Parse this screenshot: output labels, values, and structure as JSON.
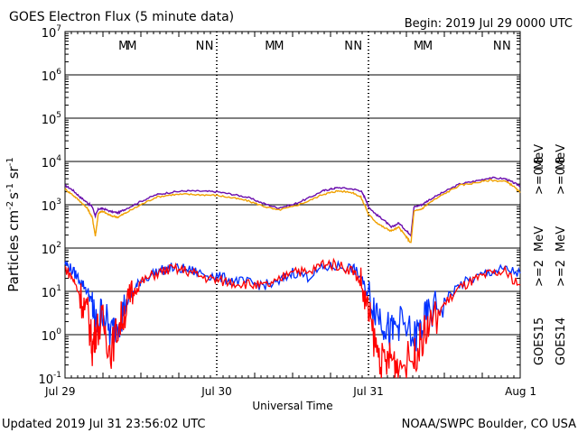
{
  "header": {
    "title": "GOES Electron Flux (5 minute data)",
    "begin": "Begin: 2019 Jul 29 0000 UTC"
  },
  "footer": {
    "updated": "Updated 2019 Jul 31 23:56:02 UTC",
    "source": "NOAA/SWPC Boulder, CO USA"
  },
  "colors": {
    "goes15_high": "#6a0dad",
    "goes14_high": "#f0a000",
    "goes15_low": "#0030ff",
    "goes14_low": "#ff0000",
    "mark_m_color": "#cc0000",
    "mark_n_color": "#0030ff",
    "threshold": "#000000"
  },
  "chart_data": {
    "type": "line",
    "title": "GOES Electron Flux (5 minute data)",
    "xlabel": "Universal Time",
    "ylabel": "Particles cm-2 s-1 sr-1",
    "ylabel_parts": {
      "base": "Particles cm",
      "e1": "-2",
      "s": "s",
      "e2": "-1",
      "sr": " sr",
      "e3": "-1"
    },
    "xlim_days": [
      0,
      3
    ],
    "x_tick_labels": [
      "Jul 29",
      "Jul 30",
      "Jul 31",
      "Aug 1"
    ],
    "y_scale": "log",
    "ylim": [
      0.1,
      10000000
    ],
    "y_tick_labels": [
      {
        "base": "10",
        "exp": "-1",
        "value": 0.1
      },
      {
        "base": "10",
        "exp": "0",
        "value": 1
      },
      {
        "base": "10",
        "exp": "1",
        "value": 10
      },
      {
        "base": "10",
        "exp": "2",
        "value": 100
      },
      {
        "base": "10",
        "exp": "3",
        "value": 1000
      },
      {
        "base": "10",
        "exp": "4",
        "value": 10000
      },
      {
        "base": "10",
        "exp": "5",
        "value": 100000
      },
      {
        "base": "10",
        "exp": "6",
        "value": 1000000
      },
      {
        "base": "10",
        "exp": "7",
        "value": 10000000
      }
    ],
    "threshold": 1000,
    "grid": true,
    "marks": [
      {
        "label": "M",
        "day": 0.385,
        "color": "m"
      },
      {
        "label": "M",
        "day": 0.44,
        "color": "n"
      },
      {
        "label": "N",
        "day": 0.89,
        "color": "m"
      },
      {
        "label": "N",
        "day": 0.95,
        "color": "n"
      },
      {
        "label": "M",
        "day": 1.35,
        "color": "m"
      },
      {
        "label": "M",
        "day": 1.41,
        "color": "n"
      },
      {
        "label": "N",
        "day": 1.87,
        "color": "m"
      },
      {
        "label": "N",
        "day": 1.93,
        "color": "n"
      },
      {
        "label": "M",
        "day": 2.33,
        "color": "m"
      },
      {
        "label": "M",
        "day": 2.39,
        "color": "n"
      },
      {
        "label": "N",
        "day": 2.85,
        "color": "m"
      },
      {
        "label": "N",
        "day": 2.91,
        "color": "n"
      }
    ],
    "legend": {
      "groups": [
        {
          "series": "GOES15",
          "low": ">=2",
          "high": ">=0.8"
        },
        {
          "series": "GOES14",
          "low": ">=2",
          "high": ">=0.8"
        }
      ],
      "unit": "MeV"
    },
    "series": [
      {
        "name": "GOES15 >=0.8 MeV",
        "color_key": "goes15_high",
        "points": [
          [
            0,
            2800
          ],
          [
            0.05,
            2200
          ],
          [
            0.1,
            1500
          ],
          [
            0.15,
            1100
          ],
          [
            0.18,
            900
          ],
          [
            0.2,
            550
          ],
          [
            0.22,
            800
          ],
          [
            0.25,
            820
          ],
          [
            0.3,
            700
          ],
          [
            0.35,
            650
          ],
          [
            0.4,
            800
          ],
          [
            0.5,
            1200
          ],
          [
            0.6,
            1700
          ],
          [
            0.7,
            1950
          ],
          [
            0.8,
            2100
          ],
          [
            0.9,
            2050
          ],
          [
            1.0,
            2000
          ],
          [
            1.1,
            1750
          ],
          [
            1.2,
            1500
          ],
          [
            1.3,
            1100
          ],
          [
            1.4,
            850
          ],
          [
            1.5,
            1000
          ],
          [
            1.6,
            1400
          ],
          [
            1.7,
            2100
          ],
          [
            1.75,
            2300
          ],
          [
            1.8,
            2500
          ],
          [
            1.9,
            2300
          ],
          [
            1.95,
            2100
          ],
          [
            1.98,
            1400
          ],
          [
            2.0,
            900
          ],
          [
            2.05,
            600
          ],
          [
            2.1,
            450
          ],
          [
            2.15,
            300
          ],
          [
            2.2,
            380
          ],
          [
            2.25,
            250
          ],
          [
            2.28,
            200
          ],
          [
            2.3,
            900
          ],
          [
            2.35,
            1000
          ],
          [
            2.4,
            1300
          ],
          [
            2.5,
            2000
          ],
          [
            2.6,
            3000
          ],
          [
            2.7,
            3500
          ],
          [
            2.8,
            4200
          ],
          [
            2.9,
            4000
          ],
          [
            2.95,
            3300
          ],
          [
            3.0,
            2700
          ]
        ]
      },
      {
        "name": "GOES14 >=0.8 MeV",
        "color_key": "goes14_high",
        "points": [
          [
            0,
            2300
          ],
          [
            0.05,
            1700
          ],
          [
            0.1,
            1200
          ],
          [
            0.15,
            800
          ],
          [
            0.18,
            500
          ],
          [
            0.2,
            190
          ],
          [
            0.22,
            650
          ],
          [
            0.25,
            700
          ],
          [
            0.3,
            560
          ],
          [
            0.35,
            520
          ],
          [
            0.4,
            650
          ],
          [
            0.5,
            1000
          ],
          [
            0.6,
            1500
          ],
          [
            0.7,
            1700
          ],
          [
            0.8,
            1750
          ],
          [
            0.9,
            1700
          ],
          [
            1.0,
            1650
          ],
          [
            1.1,
            1450
          ],
          [
            1.2,
            1250
          ],
          [
            1.3,
            950
          ],
          [
            1.4,
            750
          ],
          [
            1.5,
            900
          ],
          [
            1.6,
            1200
          ],
          [
            1.7,
            1750
          ],
          [
            1.75,
            1900
          ],
          [
            1.8,
            2100
          ],
          [
            1.9,
            1900
          ],
          [
            1.95,
            1500
          ],
          [
            1.98,
            900
          ],
          [
            2.0,
            600
          ],
          [
            2.05,
            400
          ],
          [
            2.1,
            300
          ],
          [
            2.15,
            250
          ],
          [
            2.2,
            300
          ],
          [
            2.25,
            180
          ],
          [
            2.28,
            130
          ],
          [
            2.3,
            700
          ],
          [
            2.35,
            800
          ],
          [
            2.4,
            1100
          ],
          [
            2.5,
            1800
          ],
          [
            2.6,
            2800
          ],
          [
            2.7,
            3200
          ],
          [
            2.8,
            3700
          ],
          [
            2.9,
            3500
          ],
          [
            2.95,
            2800
          ],
          [
            3.0,
            1900
          ]
        ]
      },
      {
        "name": "GOES15 >=2 MeV",
        "color_key": "goes15_low",
        "points": [
          [
            0,
            45
          ],
          [
            0.05,
            30
          ],
          [
            0.1,
            18
          ],
          [
            0.15,
            10
          ],
          [
            0.18,
            5
          ],
          [
            0.2,
            1.5
          ],
          [
            0.25,
            4
          ],
          [
            0.3,
            1
          ],
          [
            0.35,
            2
          ],
          [
            0.4,
            5
          ],
          [
            0.45,
            10
          ],
          [
            0.5,
            18
          ],
          [
            0.6,
            28
          ],
          [
            0.7,
            35
          ],
          [
            0.8,
            32
          ],
          [
            0.9,
            26
          ],
          [
            1.0,
            22
          ],
          [
            1.1,
            18
          ],
          [
            1.2,
            16
          ],
          [
            1.3,
            14
          ],
          [
            1.4,
            15
          ],
          [
            1.5,
            28
          ],
          [
            1.6,
            22
          ],
          [
            1.7,
            35
          ],
          [
            1.8,
            38
          ],
          [
            1.9,
            34
          ],
          [
            1.95,
            20
          ],
          [
            2.0,
            8
          ],
          [
            2.05,
            4
          ],
          [
            2.1,
            2
          ],
          [
            2.15,
            1
          ],
          [
            2.2,
            2
          ],
          [
            2.3,
            0.8
          ],
          [
            2.35,
            1.5
          ],
          [
            2.4,
            3
          ],
          [
            2.5,
            6
          ],
          [
            2.6,
            14
          ],
          [
            2.7,
            20
          ],
          [
            2.8,
            28
          ],
          [
            2.9,
            32
          ],
          [
            3.0,
            26
          ]
        ]
      },
      {
        "name": "GOES14 >=2 MeV",
        "color_key": "goes14_low",
        "points": [
          [
            0,
            35
          ],
          [
            0.05,
            20
          ],
          [
            0.1,
            8
          ],
          [
            0.15,
            3
          ],
          [
            0.18,
            0.5
          ],
          [
            0.2,
            1.2
          ],
          [
            0.25,
            2
          ],
          [
            0.3,
            0.4
          ],
          [
            0.35,
            1.5
          ],
          [
            0.4,
            4
          ],
          [
            0.45,
            9
          ],
          [
            0.5,
            16
          ],
          [
            0.6,
            26
          ],
          [
            0.7,
            33
          ],
          [
            0.8,
            30
          ],
          [
            0.9,
            22
          ],
          [
            1.0,
            18
          ],
          [
            1.1,
            16
          ],
          [
            1.2,
            15
          ],
          [
            1.3,
            13
          ],
          [
            1.4,
            16
          ],
          [
            1.5,
            35
          ],
          [
            1.6,
            25
          ],
          [
            1.7,
            45
          ],
          [
            1.8,
            40
          ],
          [
            1.9,
            30
          ],
          [
            1.95,
            15
          ],
          [
            2.0,
            3
          ],
          [
            2.05,
            0.5
          ],
          [
            2.1,
            0.2
          ],
          [
            2.15,
            0.3
          ],
          [
            2.2,
            0.2
          ],
          [
            2.3,
            0.3
          ],
          [
            2.35,
            0.8
          ],
          [
            2.4,
            1.5
          ],
          [
            2.5,
            5
          ],
          [
            2.6,
            12
          ],
          [
            2.7,
            18
          ],
          [
            2.8,
            25
          ],
          [
            2.9,
            28
          ],
          [
            3.0,
            14
          ]
        ]
      }
    ]
  }
}
